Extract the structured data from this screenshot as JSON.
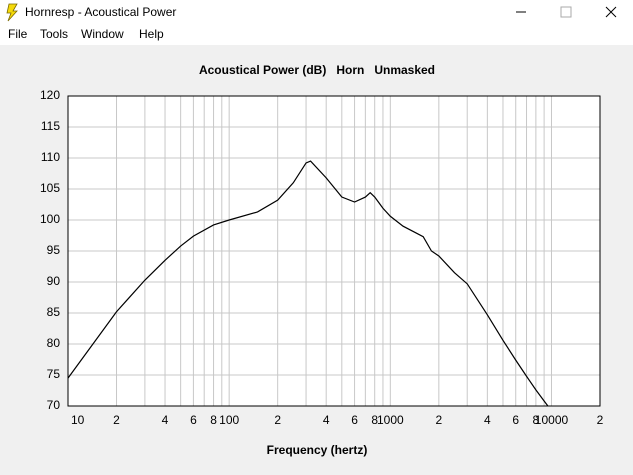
{
  "window": {
    "title": "Hornresp - Acoustical Power",
    "menu": [
      "File",
      "Tools",
      "Window",
      "Help"
    ]
  },
  "chart_data": {
    "type": "line",
    "title": "Acoustical Power (dB)   Horn   Unmasked",
    "x_label": "Frequency (hertz)",
    "x": [
      10,
      20,
      30,
      40,
      50,
      60,
      80,
      100,
      150,
      200,
      250,
      300,
      320,
      400,
      500,
      600,
      700,
      750,
      800,
      900,
      1000,
      1200,
      1400,
      1600,
      1800,
      2000,
      2500,
      3000,
      4000,
      5000,
      6000,
      7000,
      8000,
      9000,
      9500
    ],
    "values": [
      74.5,
      85.2,
      90.3,
      93.5,
      95.8,
      97.4,
      99.2,
      100,
      101.3,
      103.2,
      106,
      109.2,
      109.5,
      106.8,
      103.7,
      102.9,
      103.7,
      104.4,
      103.7,
      101.9,
      100.6,
      99,
      98.1,
      97.3,
      95,
      94.2,
      91.5,
      89.7,
      84.7,
      80.6,
      77.4,
      74.8,
      72.6,
      70.8,
      70
    ],
    "color": "#000000",
    "xscale": "log",
    "xlim": [
      10,
      20000
    ],
    "xticks": [
      10,
      {
        "value": 20,
        "label": "2"
      },
      {
        "value": 40,
        "label": "4"
      },
      {
        "value": 60,
        "label": "6"
      },
      {
        "value": 80,
        "label": "8"
      },
      100,
      {
        "value": 200,
        "label": "2"
      },
      {
        "value": 400,
        "label": "4"
      },
      {
        "value": 600,
        "label": "6"
      },
      {
        "value": 800,
        "label": "8"
      },
      1000,
      {
        "value": 2000,
        "label": "2"
      },
      {
        "value": 4000,
        "label": "4"
      },
      {
        "value": 6000,
        "label": "6"
      },
      {
        "value": 8000,
        "label": "8"
      },
      10000,
      {
        "value": 20000,
        "label": "2"
      }
    ],
    "xminor": [
      30,
      50,
      70,
      90,
      300,
      500,
      700,
      900,
      3000,
      5000,
      7000,
      9000
    ],
    "ylim": [
      70,
      120
    ],
    "yticks": [
      70,
      75,
      80,
      85,
      90,
      95,
      100,
      105,
      110,
      115,
      120
    ],
    "grid": true
  }
}
